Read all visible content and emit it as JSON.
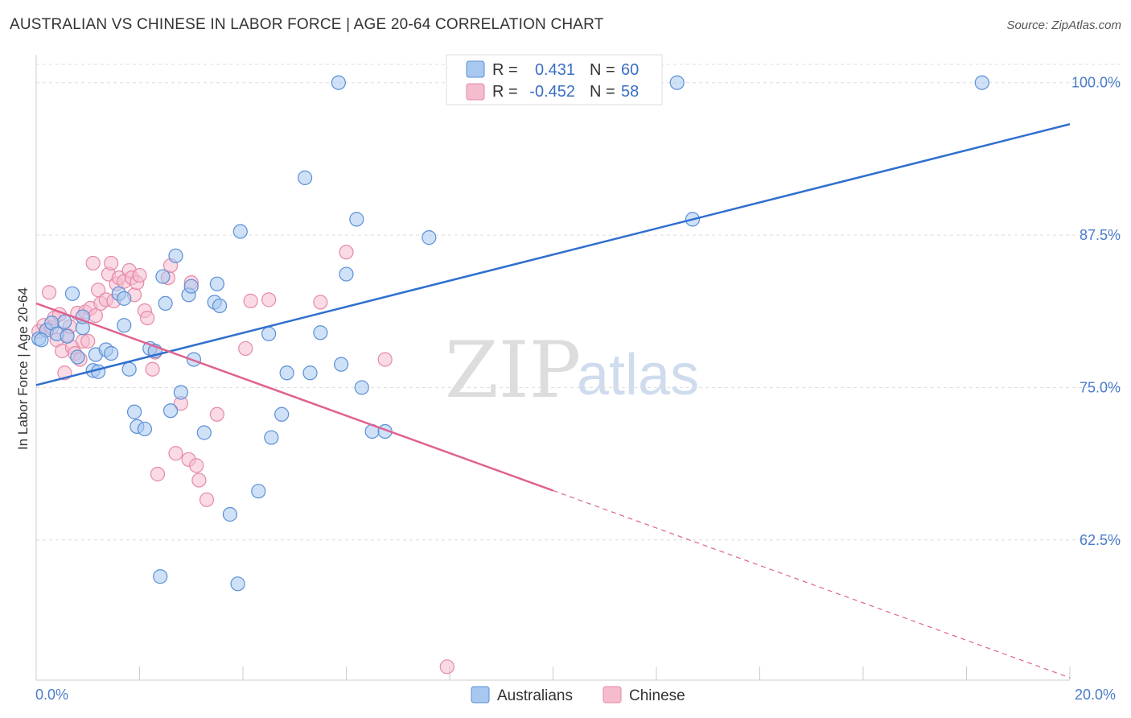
{
  "header": {
    "title": "AUSTRALIAN VS CHINESE IN LABOR FORCE | AGE 20-64 CORRELATION CHART",
    "source": "Source: ZipAtlas.com"
  },
  "watermark": {
    "zip": "ZIP",
    "atlas": "atlas"
  },
  "legend": {
    "rows": [
      {
        "r_label": "R =",
        "r_value": "0.431",
        "n_label": "N =",
        "n_value": "60"
      },
      {
        "r_label": "R =",
        "r_value": "-0.452",
        "n_label": "N =",
        "n_value": "58"
      }
    ]
  },
  "bottom_legend": {
    "australians": "Australians",
    "chinese": "Chinese"
  },
  "colors": {
    "australians_fill": "#a8c8f0",
    "australians_stroke": "#5b8fd6",
    "australians_line": "#2f6fce",
    "chinese_fill": "#f5bccd",
    "chinese_stroke": "#e58aa8",
    "chinese_line": "#e0628f",
    "tick_label": "#4a7cc9",
    "grid": "#dddddd"
  },
  "chart_data": {
    "type": "scatter",
    "title": "AUSTRALIAN VS CHINESE IN LABOR FORCE | AGE 20-64 CORRELATION CHART",
    "xlabel": "",
    "ylabel": "In Labor Force | Age 20-64",
    "xlim": [
      0,
      20
    ],
    "ylim": [
      51,
      101.5
    ],
    "x_tick_labels": {
      "0": "0.0%",
      "20": "20.0%"
    },
    "y_ticks": [
      62.5,
      75.0,
      87.5,
      100.0
    ],
    "y_tick_labels": [
      "62.5%",
      "75.0%",
      "87.5%",
      "100.0%"
    ],
    "grid": true,
    "legend_position": "top-center",
    "series": [
      {
        "name": "Australians",
        "R": 0.431,
        "N": 60,
        "trend": {
          "x": [
            0,
            20
          ],
          "y": [
            75.2,
            96.6
          ],
          "dashed_from": null
        },
        "points": [
          [
            0.05,
            79.0
          ],
          [
            0.2,
            79.7
          ],
          [
            0.3,
            80.3
          ],
          [
            0.4,
            79.4
          ],
          [
            0.55,
            80.4
          ],
          [
            0.6,
            79.2
          ],
          [
            0.9,
            79.9
          ],
          [
            0.7,
            82.7
          ],
          [
            0.8,
            77.5
          ],
          [
            0.9,
            80.8
          ],
          [
            1.1,
            76.4
          ],
          [
            1.15,
            77.7
          ],
          [
            1.2,
            76.3
          ],
          [
            1.35,
            78.1
          ],
          [
            1.45,
            77.8
          ],
          [
            1.6,
            82.7
          ],
          [
            1.7,
            82.3
          ],
          [
            1.7,
            80.1
          ],
          [
            1.8,
            76.5
          ],
          [
            1.9,
            73.0
          ],
          [
            1.95,
            71.8
          ],
          [
            2.1,
            71.6
          ],
          [
            2.2,
            78.2
          ],
          [
            2.3,
            78.0
          ],
          [
            2.45,
            84.1
          ],
          [
            2.5,
            81.9
          ],
          [
            2.6,
            73.1
          ],
          [
            2.7,
            85.8
          ],
          [
            2.8,
            74.6
          ],
          [
            2.95,
            82.6
          ],
          [
            3.0,
            83.3
          ],
          [
            3.05,
            77.3
          ],
          [
            3.25,
            71.3
          ],
          [
            3.45,
            82.0
          ],
          [
            3.5,
            83.5
          ],
          [
            3.55,
            81.7
          ],
          [
            3.75,
            64.6
          ],
          [
            3.9,
            58.9
          ],
          [
            3.95,
            87.8
          ],
          [
            4.3,
            66.5
          ],
          [
            4.5,
            79.4
          ],
          [
            4.55,
            70.9
          ],
          [
            4.75,
            72.8
          ],
          [
            4.85,
            76.2
          ],
          [
            5.2,
            92.2
          ],
          [
            5.3,
            76.2
          ],
          [
            5.5,
            79.5
          ],
          [
            5.85,
            100.0
          ],
          [
            5.9,
            76.9
          ],
          [
            6.0,
            84.3
          ],
          [
            6.2,
            88.8
          ],
          [
            6.3,
            75.0
          ],
          [
            6.5,
            71.4
          ],
          [
            6.75,
            71.4
          ],
          [
            7.6,
            87.3
          ],
          [
            2.4,
            59.5
          ],
          [
            12.4,
            100.0
          ],
          [
            12.7,
            88.8
          ],
          [
            18.3,
            100.0
          ],
          [
            0.1,
            78.9
          ]
        ]
      },
      {
        "name": "Chinese",
        "R": -0.452,
        "N": 58,
        "trend": {
          "x": [
            0,
            20
          ],
          "y": [
            81.9,
            51.2
          ],
          "solid_until_x": 10.0
        },
        "points": [
          [
            0.05,
            79.6
          ],
          [
            0.15,
            80.1
          ],
          [
            0.2,
            79.7
          ],
          [
            0.25,
            82.8
          ],
          [
            0.3,
            79.9
          ],
          [
            0.35,
            80.7
          ],
          [
            0.4,
            78.9
          ],
          [
            0.45,
            81.0
          ],
          [
            0.5,
            78.0
          ],
          [
            0.55,
            76.2
          ],
          [
            0.6,
            79.3
          ],
          [
            0.65,
            80.0
          ],
          [
            0.7,
            78.3
          ],
          [
            0.75,
            77.8
          ],
          [
            0.8,
            81.1
          ],
          [
            0.85,
            77.3
          ],
          [
            0.9,
            78.8
          ],
          [
            0.95,
            81.2
          ],
          [
            1.0,
            78.8
          ],
          [
            1.05,
            81.5
          ],
          [
            1.1,
            85.2
          ],
          [
            1.15,
            80.9
          ],
          [
            1.2,
            83.0
          ],
          [
            1.25,
            81.9
          ],
          [
            1.35,
            82.2
          ],
          [
            1.4,
            84.3
          ],
          [
            1.45,
            85.2
          ],
          [
            1.5,
            82.1
          ],
          [
            1.55,
            83.5
          ],
          [
            1.6,
            84.0
          ],
          [
            1.7,
            83.7
          ],
          [
            1.8,
            84.6
          ],
          [
            1.85,
            84.0
          ],
          [
            1.9,
            82.6
          ],
          [
            1.95,
            83.6
          ],
          [
            2.0,
            84.2
          ],
          [
            2.1,
            81.3
          ],
          [
            2.15,
            80.7
          ],
          [
            2.25,
            76.5
          ],
          [
            2.3,
            77.9
          ],
          [
            2.35,
            67.9
          ],
          [
            2.55,
            84.0
          ],
          [
            2.6,
            85.0
          ],
          [
            2.7,
            69.6
          ],
          [
            2.8,
            73.7
          ],
          [
            2.95,
            69.1
          ],
          [
            3.0,
            83.6
          ],
          [
            3.1,
            68.6
          ],
          [
            3.15,
            67.4
          ],
          [
            3.3,
            65.8
          ],
          [
            3.5,
            72.8
          ],
          [
            4.05,
            78.2
          ],
          [
            4.15,
            82.1
          ],
          [
            4.5,
            82.2
          ],
          [
            5.5,
            82.0
          ],
          [
            6.0,
            86.1
          ],
          [
            6.75,
            77.3
          ],
          [
            7.95,
            52.1
          ]
        ]
      }
    ]
  }
}
